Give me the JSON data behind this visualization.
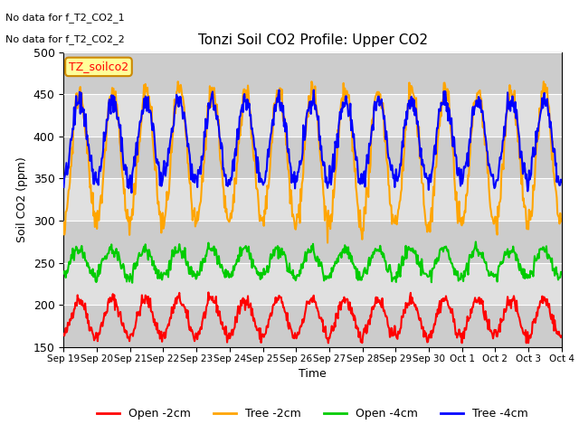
{
  "title": "Tonzi Soil CO2 Profile: Upper CO2",
  "ylabel": "Soil CO2 (ppm)",
  "xlabel": "Time",
  "no_data_text": [
    "No data for f_T2_CO2_1",
    "No data for f_T2_CO2_2"
  ],
  "legend_label_text": "TZ_soilco2",
  "legend_lines": [
    "Open -2cm",
    "Tree -2cm",
    "Open -4cm",
    "Tree -4cm"
  ],
  "legend_colors": [
    "#ff0000",
    "#ffa500",
    "#00cc00",
    "#0000ff"
  ],
  "ylim": [
    150,
    500
  ],
  "background_color": "#ffffff",
  "plot_bg_color": "#e8e8e8",
  "x_tick_labels": [
    "Sep 19",
    "Sep 20",
    "Sep 21",
    "Sep 22",
    "Sep 23",
    "Sep 24",
    "Sep 25",
    "Sep 26",
    "Sep 27",
    "Sep 28",
    "Sep 29",
    "Sep 30",
    "Oct 1",
    "Oct 2",
    "Oct 3",
    "Oct 4"
  ],
  "n_days": 15,
  "pts_per_day": 48,
  "open2_base": 185,
  "open2_amp": 22,
  "tree2_base": 375,
  "tree2_amp": 80,
  "open4_base": 250,
  "open4_amp": 16,
  "tree4_base": 395,
  "tree4_amp": 48,
  "line_width": 1.5
}
